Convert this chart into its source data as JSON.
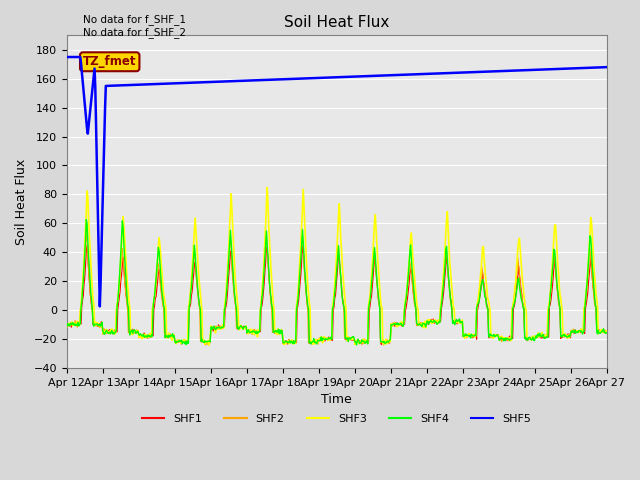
{
  "title": "Soil Heat Flux",
  "xlabel": "Time",
  "ylabel": "Soil Heat Flux",
  "ylim": [
    -40,
    190
  ],
  "yticks": [
    -40,
    -20,
    0,
    20,
    40,
    60,
    80,
    100,
    120,
    140,
    160,
    180
  ],
  "annotations": [
    "No data for f_SHF_1",
    "No data for f_SHF_2"
  ],
  "annotation_box_label": "TZ_fmet",
  "annotation_box_color": "#FFD700",
  "annotation_box_text_color": "#8B0000",
  "x_tick_labels": [
    "Apr 12",
    "Apr 13",
    "Apr 14",
    "Apr 15",
    "Apr 16",
    "Apr 17",
    "Apr 18",
    "Apr 19",
    "Apr 20",
    "Apr 21",
    "Apr 22",
    "Apr 23",
    "Apr 24",
    "Apr 25",
    "Apr 26",
    "Apr 27"
  ],
  "background_color": "#d8d8d8",
  "plot_bg_color": "#e8e8e8",
  "grid_color": "white",
  "shf5_color": "blue",
  "shf1_color": "red",
  "shf2_color": "orange",
  "shf3_color": "yellow",
  "shf4_color": "lime",
  "day_peak_heights_shf3": [
    86,
    68,
    53,
    65,
    81,
    86,
    85,
    75,
    69,
    55,
    71,
    46,
    55,
    65,
    67
  ],
  "day_peak_heights_shf4": [
    67,
    65,
    46,
    46,
    57,
    56,
    56,
    45,
    45,
    46,
    46,
    22,
    23,
    46,
    57
  ],
  "night_base": -12,
  "night_vary": [
    -10,
    -15,
    -18,
    -22,
    -12,
    -15,
    -22,
    -20,
    -22,
    -10,
    -8,
    -18,
    -20,
    -18,
    -15
  ]
}
